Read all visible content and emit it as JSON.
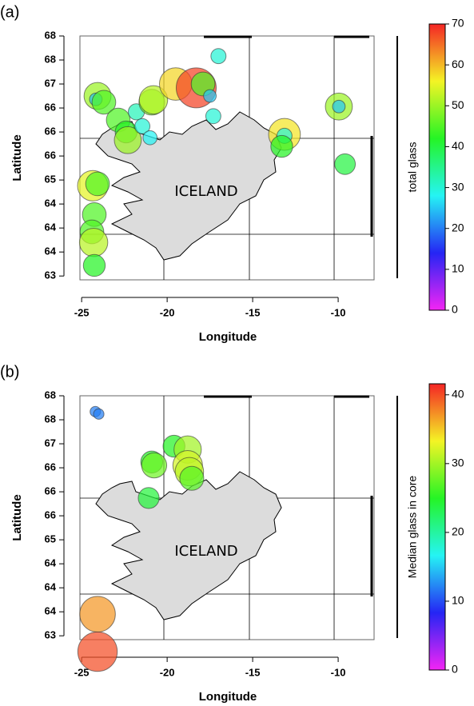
{
  "chart_data": [
    {
      "type": "scatter",
      "panel_label": "(a)",
      "xlabel": "Longitude",
      "ylabel": "Latitude",
      "annotation": "ICELAND",
      "colormap": "rainbow",
      "x": [
        -24.07,
        -24.17,
        -23.7,
        -22.86,
        -22.4,
        -22.3,
        -21.8,
        -21.45,
        -21.0,
        -20.9,
        -20.8,
        -19.5,
        -18.3,
        -17.9,
        -17.5,
        -17.3,
        -17.0,
        -9.96,
        -9.96,
        -13.14,
        -13.14,
        -13.3,
        -9.6,
        -24.35,
        -24.07,
        -24.26,
        -24.4,
        -24.3,
        -24.26
      ],
      "y": [
        66.75,
        66.68,
        66.62,
        66.25,
        66.0,
        65.83,
        66.42,
        66.12,
        65.88,
        66.62,
        66.67,
        67.0,
        66.92,
        67.0,
        66.75,
        66.33,
        67.58,
        66.53,
        66.53,
        65.95,
        65.92,
        65.7,
        65.33,
        64.88,
        64.92,
        64.28,
        63.92,
        63.7,
        63.22
      ],
      "values": [
        50,
        25,
        45,
        45,
        42,
        50,
        32,
        30,
        28,
        48,
        52,
        58,
        68,
        45,
        25,
        30,
        30,
        50,
        25,
        57,
        30,
        42,
        40,
        55,
        45,
        45,
        45,
        52,
        42
      ],
      "xlim": [
        -25.1,
        -7.9
      ],
      "ylim": [
        62.92,
        68
      ],
      "xticks": [
        -25,
        -20,
        -15,
        -10
      ],
      "yticks": [
        {
          "value": 68,
          "label": "68"
        },
        {
          "value": 67.5,
          "label": "68"
        },
        {
          "value": 67,
          "label": "67"
        },
        {
          "value": 66.5,
          "label": "66"
        },
        {
          "value": 66,
          "label": "66"
        },
        {
          "value": 65.5,
          "label": "66"
        },
        {
          "value": 65,
          "label": "65"
        },
        {
          "value": 64.5,
          "label": "64"
        },
        {
          "value": 64,
          "label": "64"
        },
        {
          "value": 63.5,
          "label": "64"
        },
        {
          "value": 63,
          "label": "63"
        }
      ],
      "colorbar": {
        "label": "total glass",
        "lim": [
          0,
          70
        ],
        "ticks": [
          0,
          10,
          20,
          30,
          40,
          50,
          60,
          70
        ]
      }
    },
    {
      "type": "scatter",
      "panel_label": "(b)",
      "xlabel": "Longitude",
      "ylabel": "Latitude",
      "annotation": "ICELAND",
      "colormap": "rainbow",
      "x": [
        -24.2,
        -24.0,
        -19.6,
        -20.9,
        -20.76,
        -18.8,
        -18.8,
        -18.7,
        -18.56,
        -21.08,
        -24.07,
        -24.07
      ],
      "y": [
        67.67,
        67.62,
        66.95,
        66.62,
        66.55,
        66.88,
        66.55,
        66.42,
        66.28,
        65.87,
        63.45,
        62.67
      ],
      "values": [
        12,
        12,
        25,
        25,
        28,
        30,
        32,
        31,
        27,
        24,
        37,
        40
      ],
      "xlim": [
        -25.1,
        -7.9
      ],
      "ylim": [
        62.92,
        68
      ],
      "xticks": [
        -25,
        -20,
        -15,
        -10
      ],
      "yticks": [
        {
          "value": 68,
          "label": "68"
        },
        {
          "value": 67.5,
          "label": "68"
        },
        {
          "value": 67,
          "label": "67"
        },
        {
          "value": 66.5,
          "label": "66"
        },
        {
          "value": 66,
          "label": "66"
        },
        {
          "value": 65.5,
          "label": "66"
        },
        {
          "value": 65,
          "label": "65"
        },
        {
          "value": 64.5,
          "label": "64"
        },
        {
          "value": 64,
          "label": "64"
        },
        {
          "value": 63.5,
          "label": "64"
        },
        {
          "value": 63,
          "label": "63"
        }
      ],
      "colorbar": {
        "label": "Median glass in core",
        "lim": [
          0,
          41.6
        ],
        "ticks": [
          0,
          10,
          20,
          30,
          40
        ]
      }
    }
  ]
}
